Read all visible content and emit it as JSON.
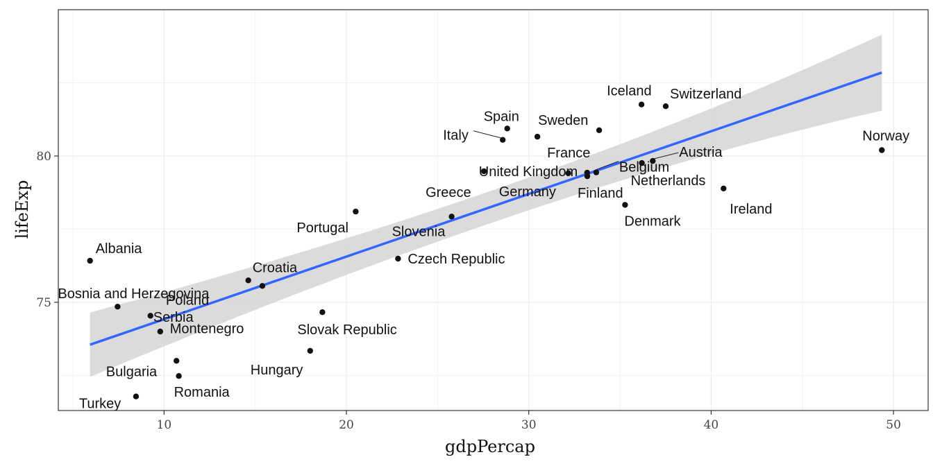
{
  "chart_data": {
    "type": "scatter",
    "xlabel": "gdpPercap",
    "ylabel": "lifeExp",
    "xlim": [
      4.2,
      51.9
    ],
    "ylim": [
      71.3,
      85.0
    ],
    "x_ticks": [
      10,
      20,
      30,
      40,
      50
    ],
    "y_ticks": [
      75,
      80
    ],
    "grid": true,
    "colors": {
      "points": "#111111",
      "trend_line": "#3366FF",
      "ribbon": "#d9d9d9",
      "grid": "#ebebeb"
    },
    "points": [
      {
        "label": "Albania",
        "x": 5.94,
        "y": 76.42
      },
      {
        "label": "Austria",
        "x": 36.8,
        "y": 79.83
      },
      {
        "label": "Belgium",
        "x": 33.7,
        "y": 79.44
      },
      {
        "label": "Bosnia and Herzegovina",
        "x": 7.45,
        "y": 74.85
      },
      {
        "label": "Bulgaria",
        "x": 10.68,
        "y": 73.0
      },
      {
        "label": "Croatia",
        "x": 14.62,
        "y": 75.75
      },
      {
        "label": "Czech Republic",
        "x": 22.83,
        "y": 76.49
      },
      {
        "label": "Denmark",
        "x": 35.28,
        "y": 78.33
      },
      {
        "label": "Finland",
        "x": 33.21,
        "y": 79.31
      },
      {
        "label": "France",
        "x": 30.47,
        "y": 80.66
      },
      {
        "label": "Germany",
        "x": 32.17,
        "y": 79.41
      },
      {
        "label": "Greece",
        "x": 27.54,
        "y": 79.48
      },
      {
        "label": "Hungary",
        "x": 18.01,
        "y": 73.34
      },
      {
        "label": "Iceland",
        "x": 36.18,
        "y": 81.76
      },
      {
        "label": "Ireland",
        "x": 40.68,
        "y": 78.89
      },
      {
        "label": "Italy",
        "x": 28.57,
        "y": 80.55
      },
      {
        "label": "Montenegro",
        "x": 9.25,
        "y": 74.54
      },
      {
        "label": "Netherlands",
        "x": 36.2,
        "y": 79.76
      },
      {
        "label": "Norway",
        "x": 49.36,
        "y": 80.2
      },
      {
        "label": "Poland",
        "x": 15.39,
        "y": 75.56
      },
      {
        "label": "Portugal",
        "x": 20.51,
        "y": 78.1
      },
      {
        "label": "Romania",
        "x": 10.81,
        "y": 72.48
      },
      {
        "label": "Serbia",
        "x": 9.79,
        "y": 74.0
      },
      {
        "label": "Slovak Republic",
        "x": 18.68,
        "y": 74.66
      },
      {
        "label": "Slovenia",
        "x": 25.77,
        "y": 77.93
      },
      {
        "label": "Spain",
        "x": 28.82,
        "y": 80.94
      },
      {
        "label": "Sweden",
        "x": 33.86,
        "y": 80.88
      },
      {
        "label": "Switzerland",
        "x": 37.51,
        "y": 81.7
      },
      {
        "label": "Turkey",
        "x": 8.46,
        "y": 71.78
      },
      {
        "label": "United Kingdom",
        "x": 33.2,
        "y": 79.43
      }
    ],
    "trend": {
      "method": "linear",
      "x": [
        5.94,
        49.36
      ],
      "y": [
        73.55,
        82.85
      ],
      "ribbon_lower": [
        72.45,
        81.55
      ],
      "ribbon_upper": [
        74.65,
        84.15
      ]
    }
  }
}
